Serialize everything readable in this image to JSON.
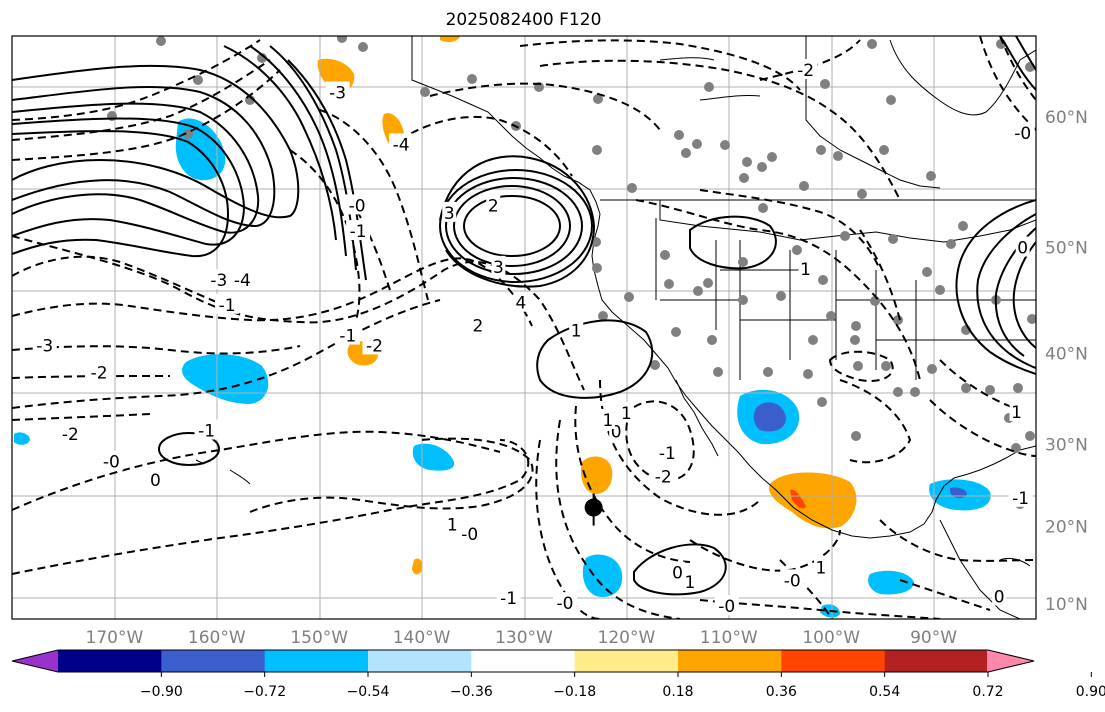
{
  "title": "2025082400 F120",
  "colors": {
    "grid": "#b0b0b0",
    "land_border": "#000000",
    "station": "#808080",
    "storm": "#000000",
    "cb": [
      "#9932cc",
      "#00008b",
      "#3a5fcd",
      "#00bfff",
      "#b2e3ff",
      "#ffffff",
      "#ffec8b",
      "#ffa500",
      "#ff4500",
      "#b22222",
      "#ff88aa"
    ]
  },
  "chart_data": {
    "type": "map",
    "projection": "mercator",
    "lon_range": [
      -180,
      -80
    ],
    "lat_range": [
      8,
      65
    ],
    "lon_ticks": [
      {
        "lon": -170,
        "label": "170°W"
      },
      {
        "lon": -160,
        "label": "160°W"
      },
      {
        "lon": -150,
        "label": "150°W"
      },
      {
        "lon": -140,
        "label": "140°W"
      },
      {
        "lon": -130,
        "label": "130°W"
      },
      {
        "lon": -120,
        "label": "120°W"
      },
      {
        "lon": -110,
        "label": "110°W"
      },
      {
        "lon": -100,
        "label": "100°W"
      },
      {
        "lon": -90,
        "label": "90°W"
      }
    ],
    "lat_ticks": [
      {
        "lat": 60,
        "label": "60°N"
      },
      {
        "lat": 50,
        "label": "50°N"
      },
      {
        "lat": 40,
        "label": "40°N"
      },
      {
        "lat": 30,
        "label": "30°N"
      },
      {
        "lat": 20,
        "label": "20°N"
      },
      {
        "lat": 10,
        "label": "10°N"
      }
    ],
    "colorbar": {
      "ticks": [
        "−0.90",
        "−0.72",
        "−0.54",
        "−0.36",
        "−0.18",
        "0.18",
        "0.36",
        "0.54",
        "0.72",
        "0.90"
      ],
      "extend": "both"
    },
    "contour_labels": [
      {
        "text": "-3",
        "lon": -176.8,
        "lat": 40.8
      },
      {
        "text": "-2",
        "lon": -171.5,
        "lat": 38.0
      },
      {
        "text": "-2",
        "lon": -174.3,
        "lat": 31.2
      },
      {
        "text": "-0",
        "lon": -170.3,
        "lat": 28.0
      },
      {
        "text": "0",
        "lon": -166.0,
        "lat": 25.8
      },
      {
        "text": "-1",
        "lon": -161.0,
        "lat": 31.6
      },
      {
        "text": "-1",
        "lon": -159.0,
        "lat": 44.8
      },
      {
        "text": "-3",
        "lon": -159.8,
        "lat": 47.1
      },
      {
        "text": "-4",
        "lon": -157.5,
        "lat": 47.1
      },
      {
        "text": "-0",
        "lon": -146.3,
        "lat": 53.5
      },
      {
        "text": "-1",
        "lon": -146.2,
        "lat": 51.4
      },
      {
        "text": "-4",
        "lon": -142.0,
        "lat": 58.1
      },
      {
        "text": "-3",
        "lon": -148.2,
        "lat": 61.6
      },
      {
        "text": "-2",
        "lon": -144.6,
        "lat": 40.8
      },
      {
        "text": "-1",
        "lon": -147.2,
        "lat": 41.8
      },
      {
        "text": "3",
        "lon": -137.3,
        "lat": 52.9
      },
      {
        "text": "2",
        "lon": -133.0,
        "lat": 53.5
      },
      {
        "text": "3",
        "lon": -132.5,
        "lat": 48.3
      },
      {
        "text": "4",
        "lon": -130.3,
        "lat": 45.0
      },
      {
        "text": "2",
        "lon": -134.5,
        "lat": 42.8
      },
      {
        "text": "1",
        "lon": -124.9,
        "lat": 42.3
      },
      {
        "text": "1",
        "lon": -120.0,
        "lat": 33.6
      },
      {
        "text": "0",
        "lon": -121.0,
        "lat": 31.5
      },
      {
        "text": "1",
        "lon": -121.8,
        "lat": 32.8
      },
      {
        "text": "1",
        "lon": -137.0,
        "lat": 20.3
      },
      {
        "text": "-0",
        "lon": -135.3,
        "lat": 19.1
      },
      {
        "text": "-1",
        "lon": -131.5,
        "lat": 10.8
      },
      {
        "text": "-0",
        "lon": -126.0,
        "lat": 10.1
      },
      {
        "text": "-2",
        "lon": -116.4,
        "lat": 26.2
      },
      {
        "text": "-1",
        "lon": -116.0,
        "lat": 29.0
      },
      {
        "text": "0",
        "lon": -115.0,
        "lat": 14.1
      },
      {
        "text": "1",
        "lon": -113.8,
        "lat": 12.9
      },
      {
        "text": "-0",
        "lon": -110.2,
        "lat": 9.7
      },
      {
        "text": "-0",
        "lon": -103.8,
        "lat": 13.1
      },
      {
        "text": "1",
        "lon": -101.0,
        "lat": 14.8
      },
      {
        "text": "-2",
        "lon": -102.5,
        "lat": 63.0
      },
      {
        "text": "1",
        "lon": -102.5,
        "lat": 48.1
      },
      {
        "text": "0",
        "lon": -81.3,
        "lat": 50.0
      },
      {
        "text": "-0",
        "lon": -81.3,
        "lat": 58.9
      },
      {
        "text": "-1",
        "lon": -81.5,
        "lat": 23.6
      },
      {
        "text": "0",
        "lon": -83.6,
        "lat": 11.0
      },
      {
        "text": "1",
        "lon": -81.9,
        "lat": 33.7
      }
    ],
    "storm_center": {
      "lon": -123.2,
      "lat": 22.4
    }
  }
}
